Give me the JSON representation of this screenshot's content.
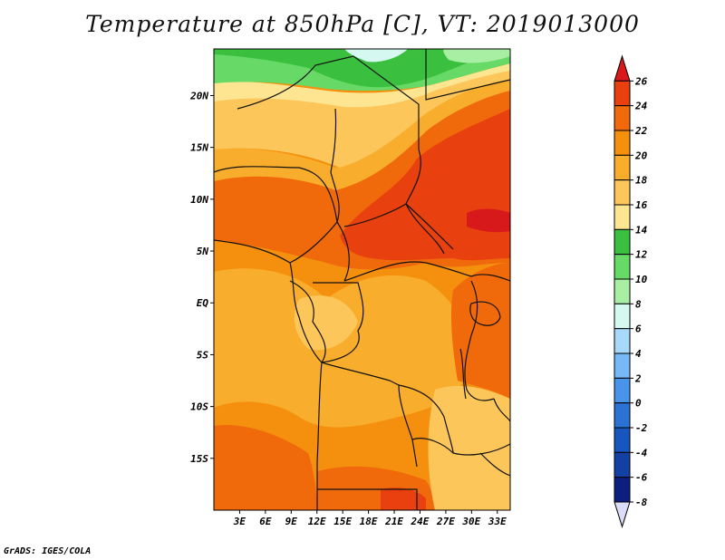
{
  "title": "Temperature at 850hPa [C], VT: 2019013000",
  "credit": "GrADS: IGES/COLA",
  "map": {
    "variable": "Temperature at 850hPa",
    "units": "C",
    "valid_time": "2019013000",
    "lat_labels": [
      "20N",
      "15N",
      "10N",
      "5N",
      "EQ",
      "5S",
      "10S",
      "15S"
    ],
    "lat_values": [
      20,
      15,
      10,
      5,
      0,
      -5,
      -10,
      -15
    ],
    "lon_labels": [
      "3E",
      "6E",
      "9E",
      "12E",
      "15E",
      "18E",
      "21E",
      "24E",
      "27E",
      "30E",
      "33E"
    ],
    "lon_values": [
      3,
      6,
      9,
      12,
      15,
      18,
      21,
      24,
      27,
      30,
      33
    ],
    "lon_range": [
      0,
      34.5
    ],
    "lat_range": [
      -20,
      24.5
    ]
  },
  "colorbar": {
    "labels": [
      "26",
      "24",
      "22",
      "20",
      "18",
      "16",
      "14",
      "12",
      "10",
      "8",
      "6",
      "4",
      "2",
      "0",
      "-2",
      "-4",
      "-6",
      "-8"
    ],
    "colors": [
      "#d7191c",
      "#e8400f",
      "#f06a0c",
      "#f5900e",
      "#f9ad2c",
      "#fcc65a",
      "#fde592",
      "#3ac03e",
      "#66d966",
      "#a8efa4",
      "#d5f9f1",
      "#a8d9fb",
      "#77b9f7",
      "#4894ea",
      "#2a72d4",
      "#1856bf",
      "#1340a3",
      "#0c1f80"
    ],
    "min_color": "#dcdcf8"
  },
  "colors": {
    "border": "#111111",
    "frame": "#000000"
  }
}
